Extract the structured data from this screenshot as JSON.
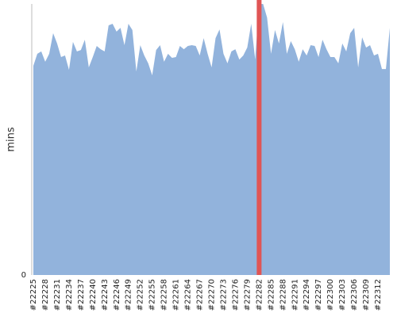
{
  "chart_data": {
    "type": "area",
    "y_label": "mins",
    "color": "#92b3dc",
    "highlight_index": 57,
    "highlight_color": "#e05555",
    "ylim": [
      0,
      100
    ],
    "yticks": [
      0
    ],
    "categories": [
      "#22225",
      null,
      null,
      "#22228",
      null,
      null,
      "#22231",
      null,
      null,
      "#22234",
      null,
      null,
      "#22237",
      null,
      null,
      "#22240",
      null,
      null,
      "#22243",
      null,
      null,
      "#22246",
      null,
      null,
      "#22249",
      null,
      null,
      "#22252",
      null,
      null,
      "#22255",
      null,
      null,
      "#22258",
      null,
      null,
      "#22261",
      null,
      null,
      "#22264",
      null,
      null,
      "#22267",
      null,
      null,
      "#22270",
      null,
      null,
      "#22273",
      null,
      null,
      "#22276",
      null,
      null,
      "#22279",
      null,
      null,
      "#22282",
      null,
      null,
      "#22285",
      null,
      null,
      "#22288",
      null,
      null,
      "#22291",
      null,
      null,
      "#22294",
      null,
      null,
      "#22297",
      null,
      null,
      "#22300",
      null,
      null,
      "#22303",
      null,
      null,
      "#22306",
      null,
      null,
      "#22309",
      null,
      null,
      "#22312",
      null,
      null,
      null
    ],
    "values": [
      77.2,
      81.6,
      82.5,
      78.7,
      81.6,
      89.2,
      85.4,
      80.4,
      81.0,
      75.7,
      86.0,
      82.5,
      83.0,
      86.8,
      76.6,
      80.4,
      84.5,
      83.3,
      82.5,
      92.1,
      92.7,
      89.8,
      91.2,
      84.8,
      92.7,
      90.4,
      75.1,
      84.8,
      81.0,
      78.1,
      73.7,
      83.0,
      84.8,
      78.7,
      81.6,
      80.1,
      80.4,
      84.5,
      83.3,
      84.5,
      84.8,
      84.5,
      81.0,
      87.4,
      81.6,
      76.6,
      87.4,
      90.6,
      81.6,
      78.1,
      82.5,
      83.3,
      79.5,
      81.0,
      83.9,
      92.7,
      79.5,
      100,
      100,
      95.0,
      81.6,
      90.4,
      85.4,
      93.3,
      81.6,
      86.3,
      83.3,
      78.7,
      83.3,
      81.0,
      84.8,
      84.5,
      80.4,
      86.8,
      83.3,
      80.4,
      80.4,
      78.1,
      85.4,
      82.5,
      89.2,
      91.2,
      76.6,
      87.7,
      83.9,
      84.8,
      81.0,
      81.6,
      76.0,
      76.0,
      91.2
    ]
  }
}
